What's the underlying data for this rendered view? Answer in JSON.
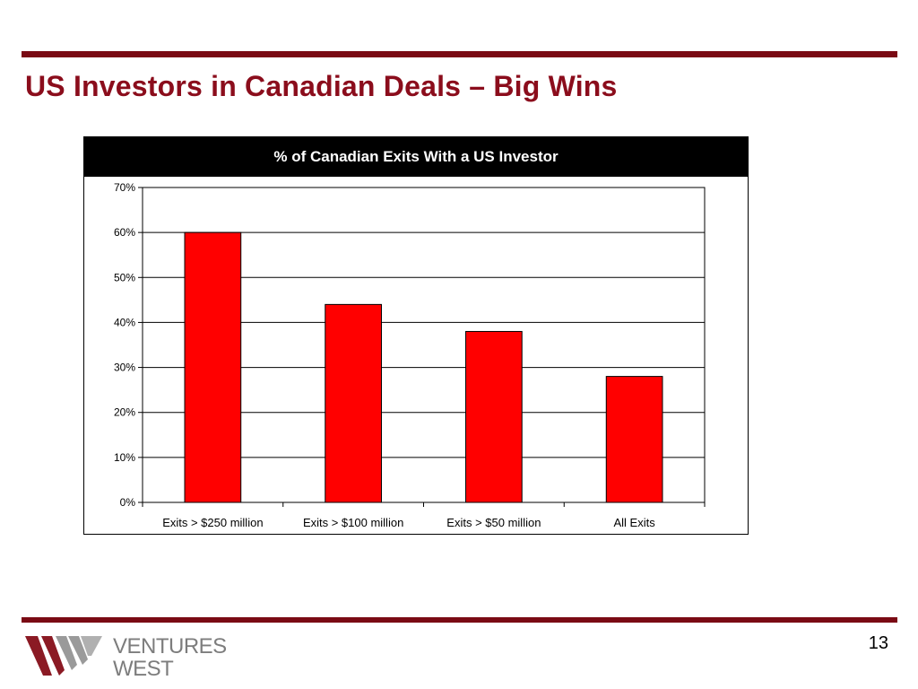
{
  "slide": {
    "title": "US Investors in Canadian Deals – Big Wins",
    "page_number": "13"
  },
  "logo": {
    "line1": "VENTURES",
    "line2": "WEST"
  },
  "colors": {
    "accent": "#7a0a14",
    "title": "#8b0d1c",
    "bar": "#ff0000"
  },
  "chart_data": {
    "type": "bar",
    "title": "% of Canadian Exits With a US Investor",
    "categories": [
      "Exits > $250 million",
      "Exits > $100 million",
      "Exits > $50 million",
      "All Exits"
    ],
    "values": [
      60,
      44,
      38,
      28
    ],
    "value_unit": "%",
    "ylim": [
      0,
      70
    ],
    "yticks": [
      0,
      10,
      20,
      30,
      40,
      50,
      60,
      70
    ],
    "ytick_labels": [
      "0%",
      "10%",
      "20%",
      "30%",
      "40%",
      "50%",
      "60%",
      "70%"
    ],
    "grid": true,
    "legend": "none",
    "xlabel": "",
    "ylabel": ""
  }
}
